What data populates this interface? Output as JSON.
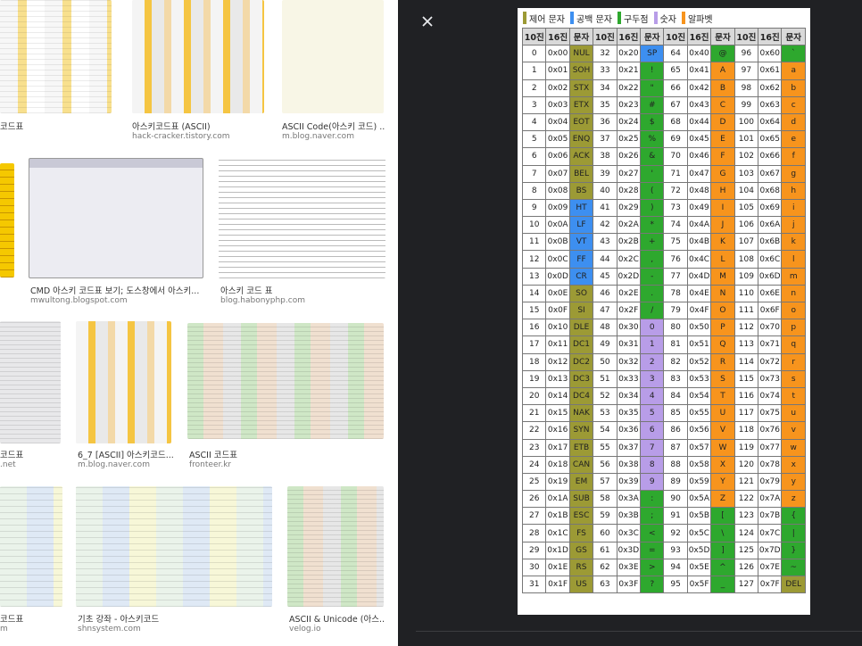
{
  "results": [
    {
      "caption": "코드표"
    },
    {
      "caption": "아스키코드표 (ASCII)",
      "source": "hack-cracker.tistory.com"
    },
    {
      "caption": "ASCII Code(아스키 코드) ...",
      "source": "m.blog.naver.com"
    },
    {
      "caption": "CMD 아스키 코드표 보기; 도스창에서 아스키...",
      "source": "mwultong.blogspot.com"
    },
    {
      "caption": "아스키 코드 표",
      "source": "blog.habonyphp.com"
    },
    {
      "caption": "코드표",
      "source": ".net"
    },
    {
      "caption": "6_7 [ASCII] 아스키코드...",
      "source": "m.blog.naver.com"
    },
    {
      "caption": "ASCII 코드표",
      "source": "fronteer.kr"
    },
    {
      "caption": "코드표",
      "source": "m"
    },
    {
      "caption": "기초 강좌 - 아스키코드",
      "source": "shnsystem.com"
    },
    {
      "caption": "ASCII & Unicode (아스...",
      "source": "velog.io"
    }
  ],
  "viewer": {
    "legend": [
      {
        "label": "제어 문자",
        "color": "#9c9a35"
      },
      {
        "label": "공백 문자",
        "color": "#3d8ff0"
      },
      {
        "label": "구두점",
        "color": "#2ea82e"
      },
      {
        "label": "숫자",
        "color": "#b89de8"
      },
      {
        "label": "알파벳",
        "color": "#f7941d"
      }
    ],
    "table": {
      "header": [
        "10진",
        "16진",
        "문자",
        "10진",
        "16진",
        "문자",
        "10진",
        "16진",
        "문자",
        "10진",
        "16진",
        "문자"
      ],
      "rows": [
        [
          "0",
          "0x00",
          "NUL",
          "32",
          "0x20",
          "SP",
          "64",
          "0x40",
          "@",
          "96",
          "0x60",
          "`"
        ],
        [
          "1",
          "0x01",
          "SOH",
          "33",
          "0x21",
          "!",
          "65",
          "0x41",
          "A",
          "97",
          "0x61",
          "a"
        ],
        [
          "2",
          "0x02",
          "STX",
          "34",
          "0x22",
          "\"",
          "66",
          "0x42",
          "B",
          "98",
          "0x62",
          "b"
        ],
        [
          "3",
          "0x03",
          "ETX",
          "35",
          "0x23",
          "#",
          "67",
          "0x43",
          "C",
          "99",
          "0x63",
          "c"
        ],
        [
          "4",
          "0x04",
          "EOT",
          "36",
          "0x24",
          "$",
          "68",
          "0x44",
          "D",
          "100",
          "0x64",
          "d"
        ],
        [
          "5",
          "0x05",
          "ENQ",
          "37",
          "0x25",
          "%",
          "69",
          "0x45",
          "E",
          "101",
          "0x65",
          "e"
        ],
        [
          "6",
          "0x06",
          "ACK",
          "38",
          "0x26",
          "&",
          "70",
          "0x46",
          "F",
          "102",
          "0x66",
          "f"
        ],
        [
          "7",
          "0x07",
          "BEL",
          "39",
          "0x27",
          "'",
          "71",
          "0x47",
          "G",
          "103",
          "0x67",
          "g"
        ],
        [
          "8",
          "0x08",
          "BS",
          "40",
          "0x28",
          "(",
          "72",
          "0x48",
          "H",
          "104",
          "0x68",
          "h"
        ],
        [
          "9",
          "0x09",
          "HT",
          "41",
          "0x29",
          ")",
          "73",
          "0x49",
          "I",
          "105",
          "0x69",
          "i"
        ],
        [
          "10",
          "0x0A",
          "LF",
          "42",
          "0x2A",
          "*",
          "74",
          "0x4A",
          "J",
          "106",
          "0x6A",
          "j"
        ],
        [
          "11",
          "0x0B",
          "VT",
          "43",
          "0x2B",
          "+",
          "75",
          "0x4B",
          "K",
          "107",
          "0x6B",
          "k"
        ],
        [
          "12",
          "0x0C",
          "FF",
          "44",
          "0x2C",
          ",",
          "76",
          "0x4C",
          "L",
          "108",
          "0x6C",
          "l"
        ],
        [
          "13",
          "0x0D",
          "CR",
          "45",
          "0x2D",
          "-",
          "77",
          "0x4D",
          "M",
          "109",
          "0x6D",
          "m"
        ],
        [
          "14",
          "0x0E",
          "SO",
          "46",
          "0x2E",
          ".",
          "78",
          "0x4E",
          "N",
          "110",
          "0x6E",
          "n"
        ],
        [
          "15",
          "0x0F",
          "SI",
          "47",
          "0x2F",
          "/",
          "79",
          "0x4F",
          "O",
          "111",
          "0x6F",
          "o"
        ],
        [
          "16",
          "0x10",
          "DLE",
          "48",
          "0x30",
          "0",
          "80",
          "0x50",
          "P",
          "112",
          "0x70",
          "p"
        ],
        [
          "17",
          "0x11",
          "DC1",
          "49",
          "0x31",
          "1",
          "81",
          "0x51",
          "Q",
          "113",
          "0x71",
          "q"
        ],
        [
          "18",
          "0x12",
          "DC2",
          "50",
          "0x32",
          "2",
          "82",
          "0x52",
          "R",
          "114",
          "0x72",
          "r"
        ],
        [
          "19",
          "0x13",
          "DC3",
          "51",
          "0x33",
          "3",
          "83",
          "0x53",
          "S",
          "115",
          "0x73",
          "s"
        ],
        [
          "20",
          "0x14",
          "DC4",
          "52",
          "0x34",
          "4",
          "84",
          "0x54",
          "T",
          "116",
          "0x74",
          "t"
        ],
        [
          "21",
          "0x15",
          "NAK",
          "53",
          "0x35",
          "5",
          "85",
          "0x55",
          "U",
          "117",
          "0x75",
          "u"
        ],
        [
          "22",
          "0x16",
          "SYN",
          "54",
          "0x36",
          "6",
          "86",
          "0x56",
          "V",
          "118",
          "0x76",
          "v"
        ],
        [
          "23",
          "0x17",
          "ETB",
          "55",
          "0x37",
          "7",
          "87",
          "0x57",
          "W",
          "119",
          "0x77",
          "w"
        ],
        [
          "24",
          "0x18",
          "CAN",
          "56",
          "0x38",
          "8",
          "88",
          "0x58",
          "X",
          "120",
          "0x78",
          "x"
        ],
        [
          "25",
          "0x19",
          "EM",
          "57",
          "0x39",
          "9",
          "89",
          "0x59",
          "Y",
          "121",
          "0x79",
          "y"
        ],
        [
          "26",
          "0x1A",
          "SUB",
          "58",
          "0x3A",
          ":",
          "90",
          "0x5A",
          "Z",
          "122",
          "0x7A",
          "z"
        ],
        [
          "27",
          "0x1B",
          "ESC",
          "59",
          "0x3B",
          ";",
          "91",
          "0x5B",
          "[",
          "123",
          "0x7B",
          "{"
        ],
        [
          "28",
          "0x1C",
          "FS",
          "60",
          "0x3C",
          "<",
          "92",
          "0x5C",
          "\\",
          "124",
          "0x7C",
          "|"
        ],
        [
          "29",
          "0x1D",
          "GS",
          "61",
          "0x3D",
          "=",
          "93",
          "0x5D",
          "]",
          "125",
          "0x7D",
          "}"
        ],
        [
          "30",
          "0x1E",
          "RS",
          "62",
          "0x3E",
          ">",
          "94",
          "0x5E",
          "^",
          "126",
          "0x7E",
          "~"
        ],
        [
          "31",
          "0x1F",
          "US",
          "63",
          "0x3F",
          "?",
          "95",
          "0x5F",
          "_",
          "127",
          "0x7F",
          "DEL"
        ]
      ]
    }
  }
}
